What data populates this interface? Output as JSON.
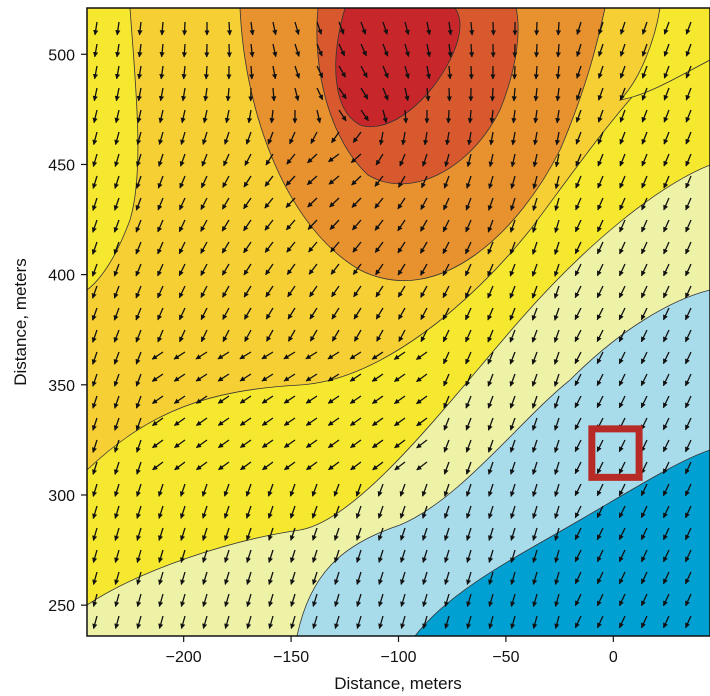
{
  "chart_data": {
    "type": "heatmap",
    "subtype": "filled contour map with vector field overlay",
    "title": "",
    "xlabel": "Distance, meters",
    "ylabel": "Distance, meters",
    "xlim": [
      -245,
      45
    ],
    "ylim": [
      236,
      521
    ],
    "xticks": [
      -200,
      -150,
      -100,
      -50,
      0
    ],
    "xtick_labels": [
      "−200",
      "−150",
      "−100",
      "−50",
      "0"
    ],
    "yticks": [
      250,
      300,
      350,
      400,
      450,
      500
    ],
    "ytick_labels": [
      "250",
      "300",
      "350",
      "400",
      "450",
      "500"
    ],
    "grid": false,
    "legend": "none",
    "contour_levels": [
      {
        "level": 1,
        "color": "#00a0d2"
      },
      {
        "level": 2,
        "color": "#a9dceb"
      },
      {
        "level": 3,
        "color": "#edf2a6"
      },
      {
        "level": 4,
        "color": "#f5e82e"
      },
      {
        "level": 5,
        "color": "#f6cf34"
      },
      {
        "level": 6,
        "color": "#e7912f"
      },
      {
        "level": 7,
        "color": "#d9592e"
      },
      {
        "level": 8,
        "color": "#c7262b"
      }
    ],
    "highlight_box": {
      "x_range": [
        -10,
        12
      ],
      "y_range": [
        308,
        330
      ],
      "color": "#b72a25"
    },
    "vectors": "dense field of black arrows, mostly pointing down/down-left, swirling around the high-value region near (-110, 480)"
  }
}
